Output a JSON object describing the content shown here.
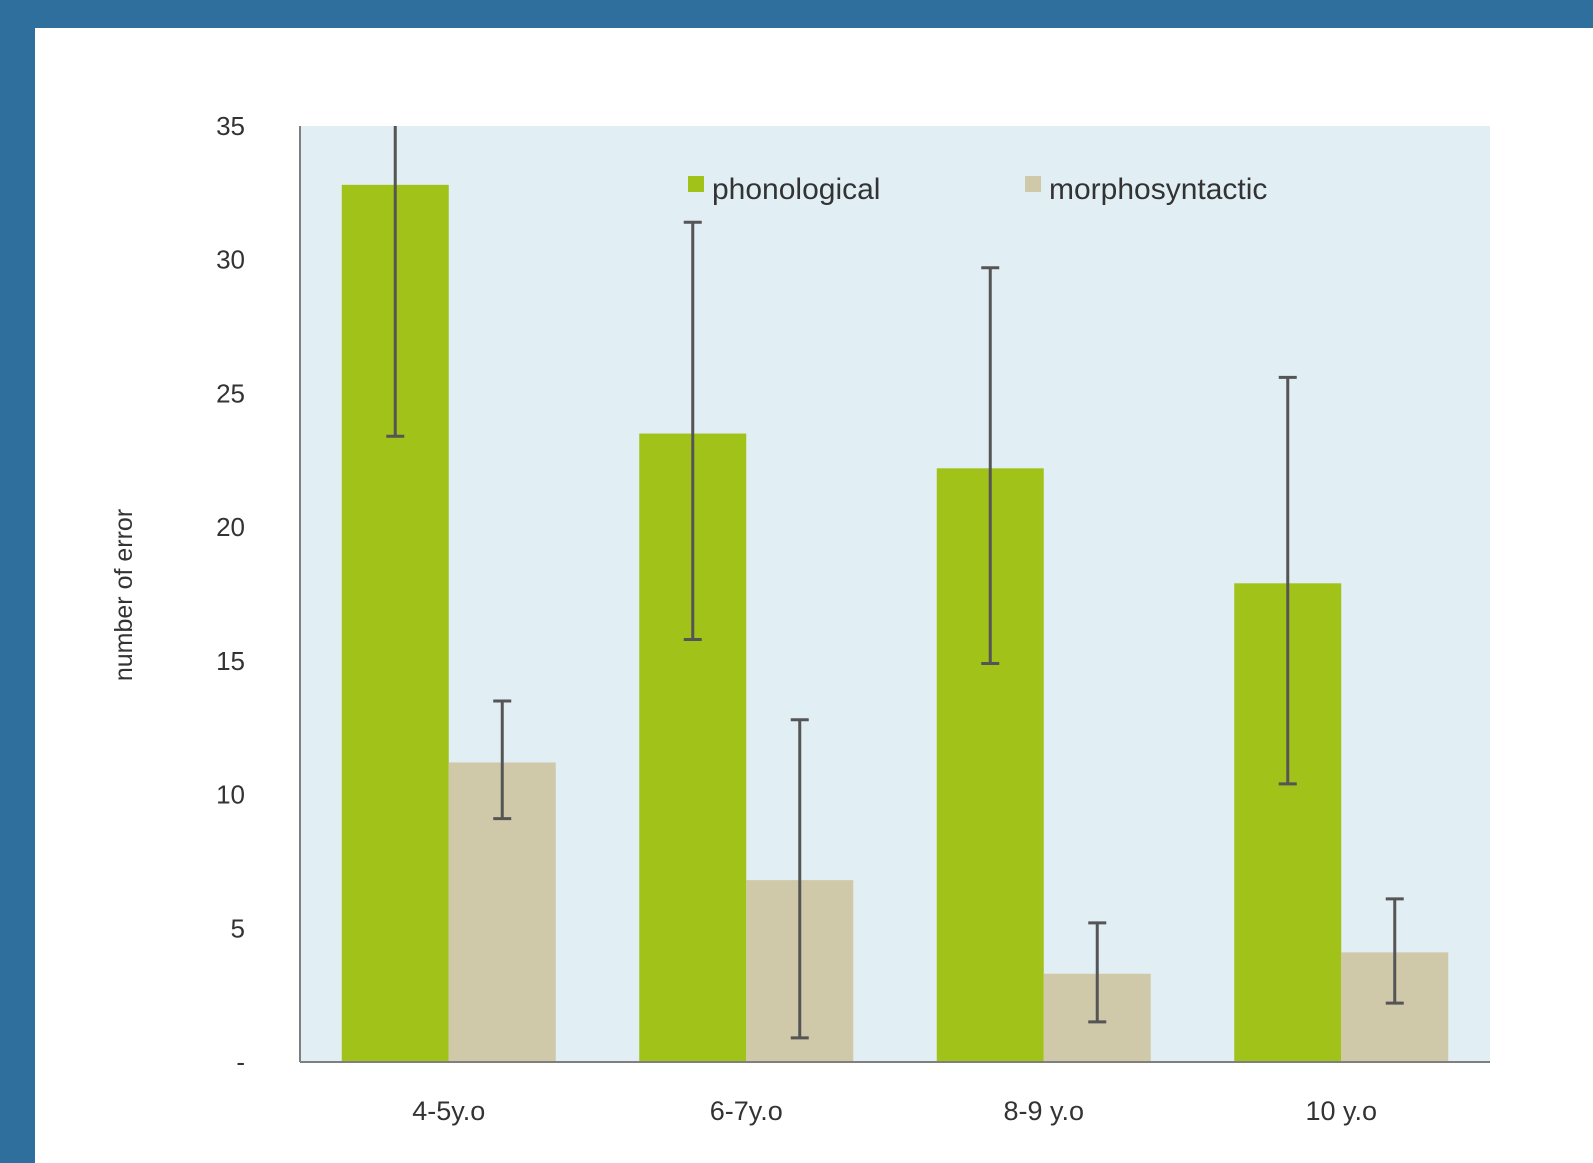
{
  "chart_data": {
    "type": "bar",
    "ylabel": "number of error",
    "xlabel": "",
    "ylim": [
      0,
      35
    ],
    "yticks": [
      0,
      5,
      10,
      15,
      20,
      25,
      30,
      35
    ],
    "ytick_labels": [
      "-",
      "5",
      "10",
      "15",
      "20",
      "25",
      "30",
      "35"
    ],
    "categories": [
      "4-5y.o",
      "6-7y.o",
      "8-9 y.o",
      "10 y.o"
    ],
    "series": [
      {
        "name": "phonological",
        "color": "#a0c219",
        "values": [
          32.8,
          23.5,
          22.2,
          17.9
        ],
        "error_low": [
          23.4,
          15.8,
          14.9,
          10.4
        ],
        "error_high": [
          35.0,
          31.4,
          29.7,
          25.6
        ]
      },
      {
        "name": "morphosyntactic",
        "color": "#cfc8a9",
        "values": [
          11.2,
          6.8,
          3.3,
          4.1
        ],
        "error_low": [
          9.1,
          0.9,
          1.5,
          2.2
        ],
        "error_high": [
          13.5,
          12.8,
          5.2,
          6.1
        ]
      }
    ],
    "legend_position": "top-right",
    "plot_background": "#e1eff5",
    "grid": false
  }
}
